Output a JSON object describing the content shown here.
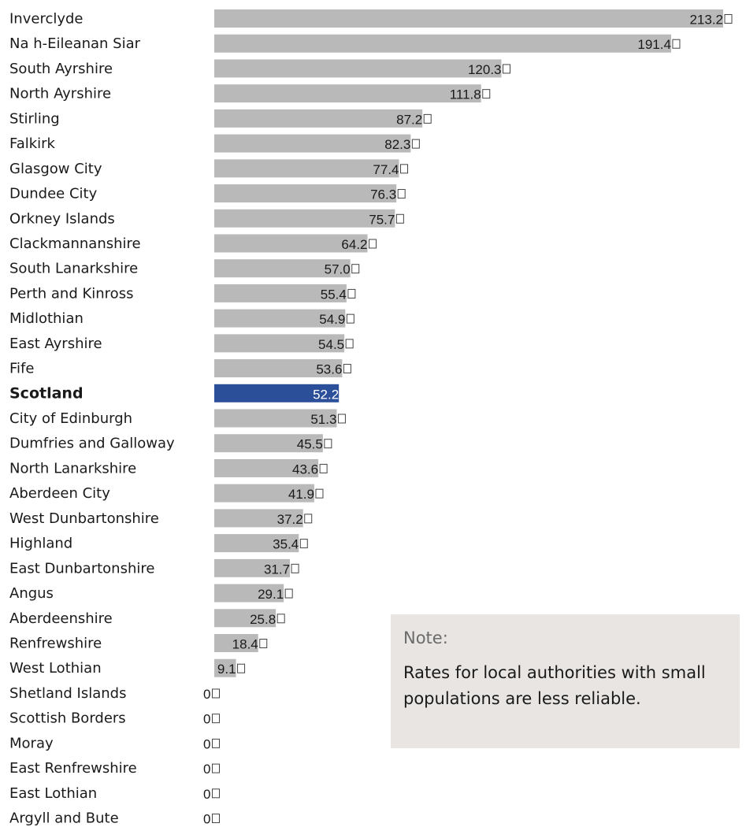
{
  "chart_data": {
    "type": "bar",
    "orientation": "horizontal",
    "categories": [
      "Inverclyde",
      "Na h-Eileanan Siar",
      "South Ayrshire",
      "North Ayrshire",
      "Stirling",
      "Falkirk",
      "Glasgow City",
      "Dundee City",
      "Orkney Islands",
      "Clackmannanshire",
      "South Lanarkshire",
      "Perth and Kinross",
      "Midlothian",
      "East Ayrshire",
      "Fife",
      "Scotland",
      "City of Edinburgh",
      "Dumfries and Galloway",
      "North Lanarkshire",
      "Aberdeen City",
      "West Dunbartonshire",
      "Highland",
      "East Dunbartonshire",
      "Angus",
      "Aberdeenshire",
      "Renfrewshire",
      "West Lothian",
      "Shetland Islands",
      "Scottish Borders",
      "Moray",
      "East Renfrewshire",
      "East Lothian",
      "Argyll and Bute"
    ],
    "values": [
      213.2,
      191.4,
      120.3,
      111.8,
      87.2,
      82.3,
      77.4,
      76.3,
      75.7,
      64.2,
      57.0,
      55.4,
      54.9,
      54.5,
      53.6,
      52.2,
      51.3,
      45.5,
      43.6,
      41.9,
      37.2,
      35.4,
      31.7,
      29.1,
      25.8,
      18.4,
      9.1,
      0,
      0,
      0,
      0,
      0,
      0
    ],
    "value_labels": [
      "213.2",
      "191.4",
      "120.3",
      "111.8",
      "87.2",
      "82.3",
      "77.4",
      "76.3",
      "75.7",
      "64.2",
      "57.0",
      "55.4",
      "54.9",
      "54.5",
      "53.6",
      "52.2",
      "51.3",
      "45.5",
      "43.6",
      "41.9",
      "37.2",
      "35.4",
      "31.7",
      "29.1",
      "25.8",
      "18.4",
      "9.1",
      "0",
      "0",
      "0",
      "0",
      "0",
      "0"
    ],
    "highlight_category": "Scotland",
    "colors": {
      "bar": "#b9b9b9",
      "highlight": "#2c4f9a"
    },
    "xlim": [
      0,
      213.2
    ],
    "grid": false,
    "title": "",
    "xlabel": "",
    "ylabel": ""
  },
  "note": {
    "title": "Note:",
    "text": "Rates for local authorities with small populations are less reliable."
  }
}
